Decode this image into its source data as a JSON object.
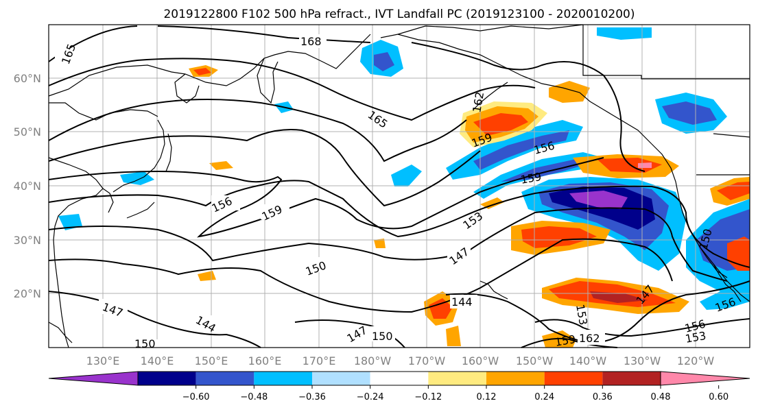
{
  "title": "2019122800 F102 500 hPa refract., IVT Landfall PC (2019123100 - 2020010200)",
  "lat_labels": [
    "60°N",
    "50°N",
    "40°N",
    "30°N",
    "20°N"
  ],
  "lon_labels": [
    "130°E",
    "140°E",
    "150°E",
    "160°E",
    "170°E",
    "180°W",
    "170°W",
    "160°W",
    "150°W",
    "140°W",
    "130°W",
    "120°W"
  ],
  "colorbar": {
    "ticks": [
      "−0.60",
      "−0.48",
      "−0.36",
      "−0.24",
      "−0.12",
      "0.12",
      "0.24",
      "0.36",
      "0.48",
      "0.60"
    ],
    "colors": [
      "#9933cc",
      "#00008b",
      "#3355cc",
      "#00bfff",
      "#b0e0ff",
      "#ffffff",
      "#ffeb80",
      "#ffa500",
      "#ff4000",
      "#b22222",
      "#ff88aa"
    ]
  },
  "contour_labels": [
    "165",
    "168",
    "165",
    "162",
    "159",
    "156",
    "159",
    "156",
    "159",
    "153",
    "147",
    "150",
    "147",
    "144",
    "150",
    "147",
    "150",
    "144",
    "153",
    "162",
    "159",
    "147",
    "150",
    "156",
    "153",
    "156"
  ],
  "colors": {
    "contour": "#000000",
    "grid": "#b0b0b0",
    "axis_label": "#808080"
  }
}
